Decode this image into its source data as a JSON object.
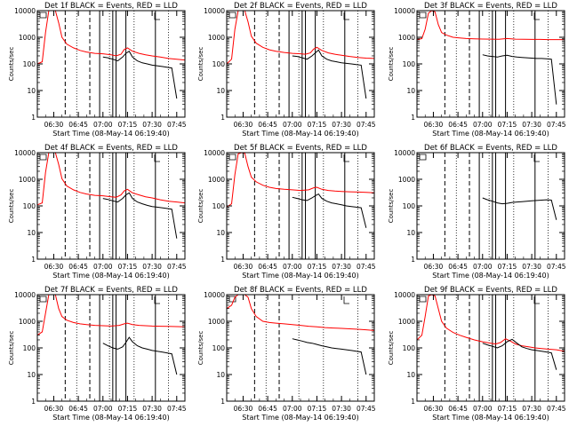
{
  "chart_data": [
    {
      "type": "line",
      "title": "Det 1f BLACK = Events, RED = LLD",
      "xlabel": "Start Time (08-May-14 06:19:40)",
      "ylabel": "Counts/sec",
      "x_ticks": [
        "06:30",
        "06:45",
        "07:00",
        "07:15",
        "07:30",
        "07:45"
      ],
      "y_ticks": [
        "1",
        "10",
        "100",
        "1000",
        "10000"
      ],
      "ylim": [
        1,
        10000
      ],
      "y_scale": "log",
      "series": [
        {
          "color": "#ff0000",
          "x": [
            0,
            3,
            5,
            7,
            9,
            11,
            13,
            15,
            18,
            22,
            26,
            30,
            35,
            40,
            45,
            48,
            51,
            53,
            55,
            58,
            62,
            66,
            70,
            75,
            80,
            85,
            90
          ],
          "values": [
            100,
            120,
            1500,
            10000,
            10000,
            10000,
            3500,
            1000,
            550,
            400,
            320,
            280,
            250,
            240,
            220,
            200,
            230,
            350,
            400,
            300,
            250,
            220,
            200,
            180,
            160,
            150,
            140
          ]
        },
        {
          "color": "#000000",
          "x": [
            40,
            43,
            46,
            49,
            52,
            54,
            56,
            58,
            61,
            64,
            67,
            70,
            73,
            76,
            79,
            82,
            85
          ],
          "values": [
            180,
            170,
            150,
            130,
            180,
            250,
            300,
            180,
            130,
            110,
            100,
            90,
            85,
            80,
            75,
            70,
            5
          ]
        }
      ]
    },
    {
      "type": "line",
      "title": "Det 2f BLACK = Events, RED = LLD",
      "xlabel": "Start Time (08-May-14 06:19:40)",
      "ylabel": "Counts/sec",
      "x_ticks": [
        "06:30",
        "06:45",
        "07:00",
        "07:15",
        "07:30",
        "07:45"
      ],
      "y_ticks": [
        "1",
        "10",
        "100",
        "1000",
        "10000"
      ],
      "ylim": [
        1,
        10000
      ],
      "y_scale": "log",
      "series": [
        {
          "color": "#ff0000",
          "x": [
            0,
            3,
            5,
            7,
            9,
            11,
            13,
            15,
            18,
            22,
            26,
            30,
            35,
            40,
            45,
            48,
            51,
            53,
            55,
            58,
            62,
            66,
            70,
            75,
            80,
            85,
            90
          ],
          "values": [
            100,
            150,
            2000,
            10000,
            10000,
            10000,
            3800,
            1100,
            600,
            420,
            340,
            300,
            270,
            250,
            240,
            230,
            260,
            360,
            420,
            320,
            260,
            230,
            210,
            190,
            175,
            165,
            160
          ]
        },
        {
          "color": "#000000",
          "x": [
            40,
            43,
            46,
            49,
            52,
            54,
            56,
            58,
            61,
            64,
            67,
            70,
            73,
            76,
            79,
            82,
            85
          ],
          "values": [
            200,
            190,
            170,
            150,
            200,
            260,
            330,
            200,
            150,
            130,
            120,
            110,
            105,
            100,
            95,
            90,
            5
          ]
        }
      ]
    },
    {
      "type": "line",
      "title": "Det 3f BLACK = Events, RED = LLD",
      "xlabel": "Start Time (08-May-14 06:19:40)",
      "ylabel": "Counts/sec",
      "x_ticks": [
        "06:30",
        "06:45",
        "07:00",
        "07:15",
        "07:30",
        "07:45"
      ],
      "y_ticks": [
        "1",
        "10",
        "100",
        "1000",
        "10000"
      ],
      "ylim": [
        1,
        10000
      ],
      "y_scale": "log",
      "series": [
        {
          "color": "#ff0000",
          "x": [
            0,
            3,
            5,
            7,
            9,
            11,
            13,
            15,
            18,
            22,
            26,
            30,
            35,
            40,
            45,
            50,
            55,
            60,
            65,
            70,
            75,
            80,
            85,
            90
          ],
          "values": [
            800,
            900,
            2000,
            8000,
            10000,
            9000,
            3000,
            1500,
            1200,
            1000,
            950,
            900,
            880,
            860,
            850,
            840,
            900,
            850,
            840,
            830,
            830,
            820,
            820,
            820
          ]
        },
        {
          "color": "#000000",
          "x": [
            40,
            43,
            46,
            49,
            52,
            55,
            58,
            61,
            64,
            67,
            70,
            73,
            76,
            79,
            82,
            85
          ],
          "values": [
            220,
            200,
            190,
            180,
            200,
            210,
            190,
            180,
            175,
            170,
            165,
            160,
            160,
            155,
            150,
            3
          ]
        }
      ]
    },
    {
      "type": "line",
      "title": "Det 4f BLACK = Events, RED = LLD",
      "xlabel": "Start Time (08-May-14 06:19:40)",
      "ylabel": "Counts/sec",
      "x_ticks": [
        "06:30",
        "06:45",
        "07:00",
        "07:15",
        "07:30",
        "07:45"
      ],
      "y_ticks": [
        "1",
        "10",
        "100",
        "1000",
        "10000"
      ],
      "ylim": [
        1,
        10000
      ],
      "y_scale": "log",
      "series": [
        {
          "color": "#ff0000",
          "x": [
            0,
            3,
            5,
            7,
            9,
            11,
            13,
            15,
            18,
            22,
            26,
            30,
            35,
            40,
            45,
            48,
            51,
            53,
            55,
            58,
            62,
            66,
            70,
            75,
            80,
            85,
            90
          ],
          "values": [
            110,
            130,
            1800,
            10000,
            10000,
            10000,
            3600,
            1050,
            560,
            400,
            320,
            280,
            250,
            240,
            220,
            210,
            260,
            370,
            420,
            310,
            260,
            220,
            200,
            170,
            150,
            140,
            130
          ]
        },
        {
          "color": "#000000",
          "x": [
            40,
            43,
            46,
            49,
            52,
            54,
            56,
            58,
            61,
            64,
            67,
            70,
            73,
            76,
            79,
            82,
            85
          ],
          "values": [
            190,
            175,
            155,
            140,
            190,
            260,
            310,
            190,
            140,
            120,
            105,
            95,
            90,
            85,
            80,
            75,
            6
          ]
        }
      ]
    },
    {
      "type": "line",
      "title": "Det 5f BLACK = Events, RED = LLD",
      "xlabel": "Start Time (08-May-14 06:19:40)",
      "ylabel": "Counts/sec",
      "x_ticks": [
        "06:30",
        "06:45",
        "07:00",
        "07:15",
        "07:30",
        "07:45"
      ],
      "y_ticks": [
        "1",
        "10",
        "100",
        "1000",
        "10000"
      ],
      "ylim": [
        1,
        10000
      ],
      "y_scale": "log",
      "series": [
        {
          "color": "#ff0000",
          "x": [
            0,
            3,
            5,
            7,
            9,
            11,
            13,
            15,
            18,
            22,
            26,
            30,
            35,
            40,
            45,
            50,
            53,
            55,
            58,
            62,
            66,
            70,
            75,
            80,
            85,
            90
          ],
          "values": [
            90,
            120,
            1500,
            9000,
            10000,
            9500,
            3000,
            1200,
            800,
            600,
            500,
            450,
            420,
            400,
            380,
            400,
            480,
            500,
            420,
            380,
            360,
            350,
            340,
            330,
            320,
            310
          ]
        },
        {
          "color": "#000000",
          "x": [
            40,
            43,
            46,
            49,
            52,
            54,
            56,
            58,
            61,
            64,
            67,
            70,
            73,
            76,
            79,
            82,
            85
          ],
          "values": [
            210,
            190,
            170,
            160,
            200,
            240,
            280,
            190,
            150,
            130,
            120,
            110,
            100,
            95,
            90,
            85,
            15
          ]
        }
      ]
    },
    {
      "type": "line",
      "title": "Det 6f BLACK = Events, RED = LLD",
      "xlabel": "Start Time (08-May-14 06:19:40)",
      "ylabel": "Counts/sec",
      "x_ticks": [
        "06:30",
        "06:45",
        "07:00",
        "07:15",
        "07:30",
        "07:45"
      ],
      "y_ticks": [
        "1",
        "10",
        "100",
        "1000",
        "10000"
      ],
      "ylim": [
        1,
        10000
      ],
      "y_scale": "log",
      "series": [
        {
          "color": "#000000",
          "x": [
            40,
            43,
            46,
            49,
            52,
            55,
            58,
            61,
            64,
            67,
            70,
            73,
            76,
            79,
            82,
            85
          ],
          "values": [
            200,
            170,
            150,
            130,
            120,
            125,
            135,
            140,
            145,
            150,
            155,
            160,
            165,
            170,
            165,
            30
          ]
        }
      ]
    },
    {
      "type": "line",
      "title": "Det 7f BLACK = Events, RED = LLD",
      "xlabel": "Start Time (08-May-14 06:19:40)",
      "ylabel": "Counts/sec",
      "x_ticks": [
        "06:30",
        "06:45",
        "07:00",
        "07:15",
        "07:30",
        "07:45"
      ],
      "y_ticks": [
        "1",
        "10",
        "100",
        "1000",
        "10000"
      ],
      "ylim": [
        1,
        10000
      ],
      "y_scale": "log",
      "series": [
        {
          "color": "#ff0000",
          "x": [
            0,
            3,
            5,
            7,
            9,
            11,
            13,
            15,
            18,
            22,
            26,
            30,
            35,
            40,
            45,
            50,
            53,
            55,
            58,
            62,
            66,
            70,
            75,
            80,
            85,
            90
          ],
          "values": [
            300,
            400,
            2000,
            10000,
            10000,
            10000,
            3000,
            1500,
            1100,
            900,
            800,
            750,
            700,
            680,
            660,
            700,
            800,
            850,
            750,
            700,
            680,
            660,
            650,
            640,
            630,
            620
          ]
        },
        {
          "color": "#000000",
          "x": [
            40,
            43,
            46,
            49,
            52,
            54,
            56,
            58,
            61,
            64,
            67,
            70,
            73,
            76,
            79,
            82,
            85
          ],
          "values": [
            150,
            120,
            100,
            90,
            110,
            160,
            250,
            170,
            120,
            100,
            90,
            80,
            75,
            70,
            65,
            60,
            10
          ]
        }
      ]
    },
    {
      "type": "line",
      "title": "Det 8f BLACK = Events, RED = LLD",
      "xlabel": "Start Time (08-May-14 06:19:40)",
      "ylabel": "Counts/sec",
      "x_ticks": [
        "06:30",
        "06:45",
        "07:00",
        "07:15",
        "07:30",
        "07:45"
      ],
      "y_ticks": [
        "1",
        "10",
        "100",
        "1000",
        "10000"
      ],
      "ylim": [
        1,
        10000
      ],
      "y_scale": "log",
      "series": [
        {
          "color": "#ff0000",
          "x": [
            0,
            3,
            5,
            7,
            9,
            11,
            13,
            15,
            18,
            22,
            26,
            30,
            35,
            40,
            45,
            50,
            55,
            60,
            65,
            70,
            75,
            80,
            85,
            90
          ],
          "values": [
            3000,
            4000,
            8000,
            10000,
            10000,
            10000,
            8000,
            3000,
            1500,
            1000,
            900,
            850,
            800,
            750,
            700,
            650,
            620,
            580,
            560,
            540,
            520,
            500,
            480,
            450
          ]
        },
        {
          "color": "#000000",
          "x": [
            40,
            43,
            46,
            49,
            52,
            54,
            56,
            58,
            61,
            64,
            67,
            70,
            73,
            76,
            79,
            82,
            85
          ],
          "values": [
            220,
            200,
            180,
            160,
            150,
            140,
            130,
            120,
            110,
            100,
            95,
            90,
            85,
            80,
            75,
            70,
            10
          ]
        }
      ]
    },
    {
      "type": "line",
      "title": "Det 9f BLACK = Events, RED = LLD",
      "xlabel": "Start Time (08-May-14 06:19:40)",
      "ylabel": "Counts/sec",
      "x_ticks": [
        "06:30",
        "06:45",
        "07:00",
        "07:15",
        "07:30",
        "07:45"
      ],
      "y_ticks": [
        "1",
        "10",
        "100",
        "1000",
        "10000"
      ],
      "ylim": [
        1,
        10000
      ],
      "y_scale": "log",
      "series": [
        {
          "color": "#ff0000",
          "x": [
            0,
            3,
            5,
            7,
            9,
            11,
            13,
            15,
            18,
            22,
            26,
            30,
            35,
            40,
            45,
            48,
            51,
            54,
            57,
            60,
            64,
            68,
            72,
            76,
            80,
            85,
            90
          ],
          "values": [
            200,
            300,
            1500,
            9000,
            10000,
            9000,
            3000,
            1000,
            550,
            380,
            300,
            250,
            200,
            170,
            150,
            140,
            160,
            220,
            180,
            140,
            120,
            110,
            100,
            95,
            90,
            85,
            75
          ]
        },
        {
          "color": "#000000",
          "x": [
            40,
            43,
            46,
            49,
            52,
            55,
            58,
            61,
            64,
            67,
            70,
            73,
            76,
            79,
            82,
            85
          ],
          "values": [
            150,
            130,
            115,
            100,
            120,
            170,
            210,
            150,
            110,
            95,
            85,
            80,
            75,
            70,
            65,
            15
          ]
        }
      ]
    }
  ]
}
